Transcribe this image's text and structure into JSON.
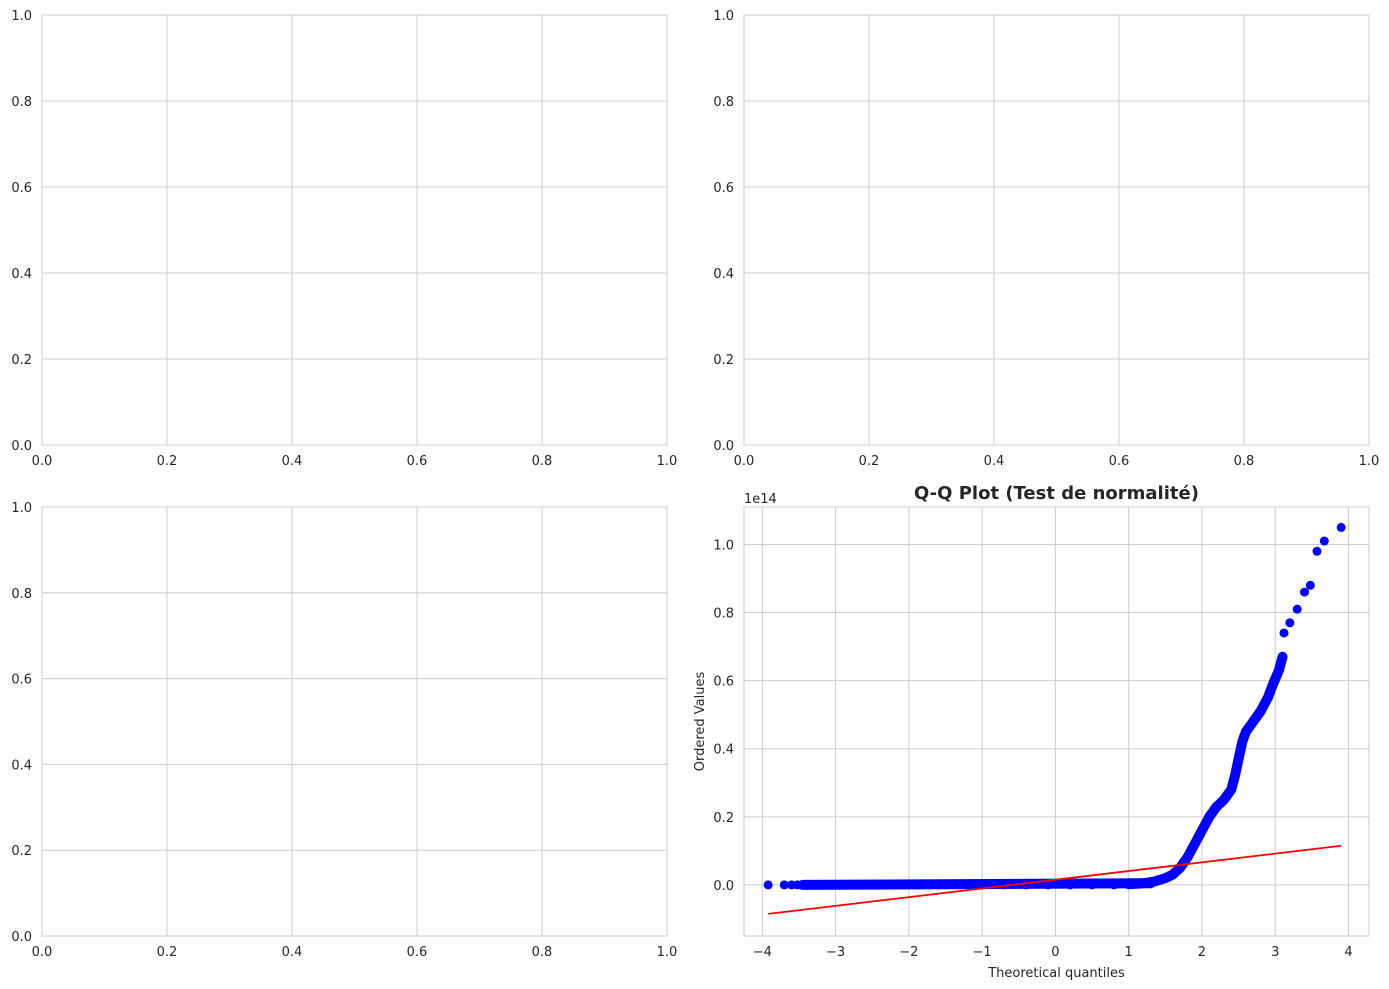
{
  "chart_data": [
    {
      "type": "scatter",
      "title": "",
      "xlabel": "",
      "ylabel": "",
      "xlim": [
        0,
        1
      ],
      "ylim": [
        0,
        1
      ],
      "xticks": [
        "0.0",
        "0.2",
        "0.4",
        "0.6",
        "0.8",
        "1.0"
      ],
      "yticks": [
        "0.0",
        "0.2",
        "0.4",
        "0.6",
        "0.8",
        "1.0"
      ],
      "grid": true,
      "points": []
    },
    {
      "type": "scatter",
      "title": "",
      "xlabel": "",
      "ylabel": "",
      "xlim": [
        0,
        1
      ],
      "ylim": [
        0,
        1
      ],
      "xticks": [
        "0.0",
        "0.2",
        "0.4",
        "0.6",
        "0.8",
        "1.0"
      ],
      "yticks": [
        "0.0",
        "0.2",
        "0.4",
        "0.6",
        "0.8",
        "1.0"
      ],
      "grid": true,
      "points": []
    },
    {
      "type": "scatter",
      "title": "",
      "xlabel": "",
      "ylabel": "",
      "xlim": [
        0,
        1
      ],
      "ylim": [
        0,
        1
      ],
      "xticks": [
        "0.0",
        "0.2",
        "0.4",
        "0.6",
        "0.8",
        "1.0"
      ],
      "yticks": [
        "0.0",
        "0.2",
        "0.4",
        "0.6",
        "0.8",
        "1.0"
      ],
      "grid": true,
      "points": []
    },
    {
      "type": "scatter",
      "title": "Q-Q Plot (Test de normalité)",
      "xlabel": "Theoretical quantiles",
      "ylabel": "Ordered Values",
      "offset_label": "1e14",
      "xlim": [
        -4.25,
        4.28
      ],
      "ylim": [
        -0.15,
        1.11
      ],
      "xticks": [
        -4,
        -3,
        -2,
        -1,
        0,
        1,
        2,
        3,
        4
      ],
      "xtick_labels": [
        "−4",
        "−3",
        "−2",
        "−1",
        "0",
        "1",
        "2",
        "3",
        "4"
      ],
      "yticks": [
        0.0,
        0.2,
        0.4,
        0.6,
        0.8,
        1.0
      ],
      "ytick_labels": [
        "0.0",
        "0.2",
        "0.4",
        "0.6",
        "0.8",
        "1.0"
      ],
      "grid": true,
      "marker_color": "#0000ff",
      "line_color": "#ff0000",
      "points": [
        [
          -3.92,
          0.0
        ],
        [
          -3.7,
          0.0
        ],
        [
          -3.6,
          0.0
        ],
        [
          -3.52,
          0.0
        ],
        [
          -3.45,
          0.0
        ],
        [
          -3.3,
          0.0
        ],
        [
          -3.1,
          0.0
        ],
        [
          -2.8,
          0.0
        ],
        [
          -2.5,
          0.0
        ],
        [
          -2.2,
          0.0
        ],
        [
          -1.9,
          0.0
        ],
        [
          -1.6,
          0.0
        ],
        [
          -1.3,
          0.0
        ],
        [
          -1.0,
          0.0
        ],
        [
          -0.7,
          0.0
        ],
        [
          -0.4,
          0.0
        ],
        [
          -0.1,
          0.0
        ],
        [
          0.2,
          0.0
        ],
        [
          0.5,
          0.0
        ],
        [
          0.8,
          0.0
        ],
        [
          1.0,
          0.002
        ],
        [
          1.2,
          0.005
        ],
        [
          1.35,
          0.01
        ],
        [
          1.5,
          0.02
        ],
        [
          1.6,
          0.03
        ],
        [
          1.7,
          0.05
        ],
        [
          1.8,
          0.08
        ],
        [
          1.9,
          0.12
        ],
        [
          2.0,
          0.16
        ],
        [
          2.1,
          0.2
        ],
        [
          2.2,
          0.23
        ],
        [
          2.3,
          0.25
        ],
        [
          2.4,
          0.28
        ],
        [
          2.45,
          0.32
        ],
        [
          2.5,
          0.37
        ],
        [
          2.55,
          0.42
        ],
        [
          2.6,
          0.45
        ],
        [
          2.7,
          0.48
        ],
        [
          2.8,
          0.51
        ],
        [
          2.9,
          0.55
        ],
        [
          2.97,
          0.59
        ],
        [
          3.05,
          0.63
        ],
        [
          3.1,
          0.67
        ],
        [
          3.12,
          0.74
        ],
        [
          3.2,
          0.77
        ],
        [
          3.3,
          0.81
        ],
        [
          3.4,
          0.86
        ],
        [
          3.48,
          0.88
        ],
        [
          3.57,
          0.98
        ],
        [
          3.67,
          1.01
        ],
        [
          3.9,
          1.05
        ]
      ],
      "fit_line": [
        [
          -3.92,
          -0.085
        ],
        [
          3.9,
          0.115
        ]
      ]
    }
  ]
}
